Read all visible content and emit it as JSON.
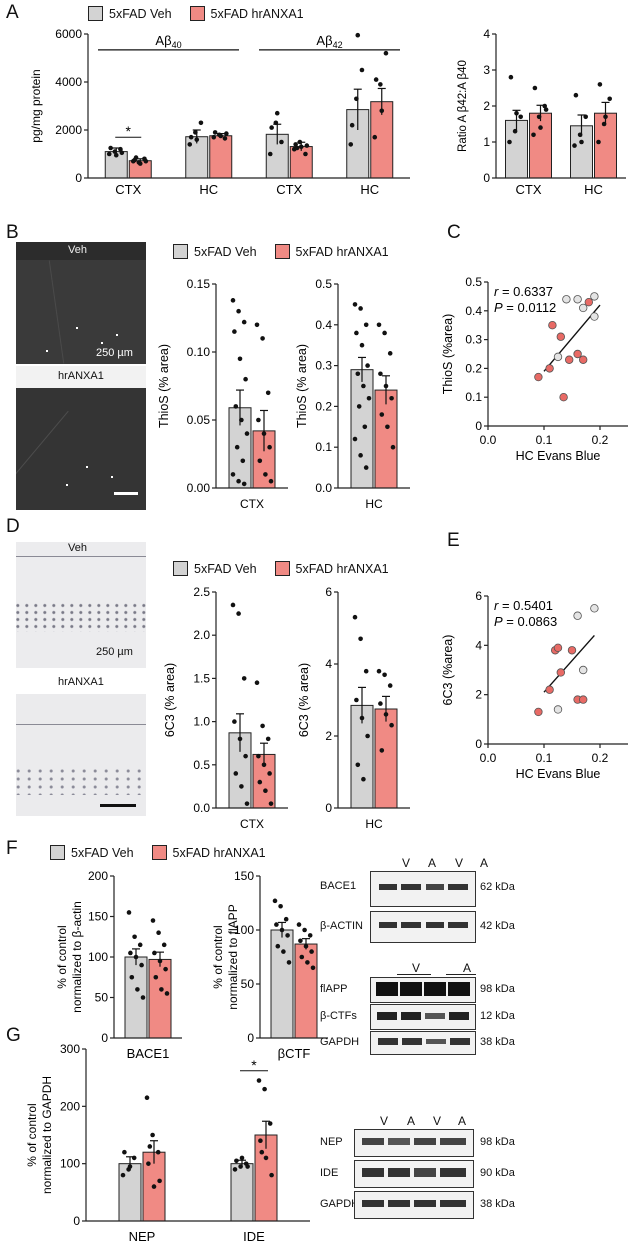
{
  "panels": {
    "A": "A",
    "B": "B",
    "C": "C",
    "D": "D",
    "E": "E",
    "F": "F",
    "G": "G"
  },
  "legend": {
    "veh": "5xFAD Veh",
    "tx": "5xFAD hrANXA1"
  },
  "colors": {
    "veh": "#d3d3d3",
    "tx": "#f08a84",
    "point_tx": "#e86a65",
    "edge": "#222222"
  },
  "micrographs": {
    "B": {
      "top_label": "Veh",
      "bottom_label": "hrANXA1",
      "scale": "250 µm"
    },
    "D": {
      "top_label": "Veh",
      "bottom_label": "hrANXA1",
      "scale": "250 µm"
    }
  },
  "blots": {
    "F1": {
      "lanes": [
        "V",
        "A",
        "V",
        "A"
      ],
      "bands": [
        {
          "name": "BACE1",
          "kda": "62 kDa"
        },
        {
          "name": "β-ACTIN",
          "kda": "42 kDa"
        }
      ]
    },
    "F2": {
      "lanes": [
        "V",
        "A"
      ],
      "bands": [
        {
          "name": "flAPP",
          "kda": "98 kDa"
        },
        {
          "name": "β-CTFs",
          "kda": "12 kDa"
        },
        {
          "name": "GAPDH",
          "kda": "38 kDa"
        }
      ]
    },
    "G": {
      "lanes": [
        "V",
        "A",
        "V",
        "A"
      ],
      "bands": [
        {
          "name": "NEP",
          "kda": "98 kDa"
        },
        {
          "name": "IDE",
          "kda": "90 kDa"
        },
        {
          "name": "GAPDH",
          "kda": "38 kDa"
        }
      ]
    }
  },
  "chart_data": [
    {
      "id": "A1",
      "type": "bar",
      "ylabel": "pg/mg protein",
      "ylim": [
        0,
        6000
      ],
      "yticks": [
        "0",
        "2000",
        "4000",
        "6000"
      ],
      "categories": [
        "CTX",
        "HC",
        "CTX",
        "HC"
      ],
      "group_labels": [
        {
          "text": "Aβ",
          "sub": "40"
        },
        {
          "text": "Aβ",
          "sub": "42"
        }
      ],
      "series": [
        {
          "name": "5xFAD Veh",
          "values": [
            1100,
            1720,
            1820,
            2850
          ],
          "sem": [
            150,
            280,
            420,
            850
          ]
        },
        {
          "name": "5xFAD hrANXA1",
          "values": [
            720,
            1760,
            1310,
            3180
          ],
          "sem": [
            80,
            90,
            180,
            550
          ]
        }
      ],
      "points": [
        [
          [
            1000,
            1100,
            1200,
            1250,
            950,
            1050
          ],
          [
            700,
            650,
            800,
            750,
            600,
            700,
            850
          ]
        ],
        [
          [
            1400,
            1900,
            2300,
            1700,
            1600
          ],
          [
            1700,
            1800,
            1650,
            1900,
            1750,
            1850
          ]
        ],
        [
          [
            1000,
            2300,
            1500,
            2100,
            2700
          ],
          [
            1200,
            1500,
            1000,
            1400,
            1300,
            1350,
            1250
          ]
        ],
        [
          [
            1400,
            3300,
            4500,
            2200
          ],
          [
            1700,
            3900,
            5200,
            4100,
            2800
          ]
        ]
      ],
      "outlier": {
        "group": 3,
        "series": 0,
        "value": 5950
      },
      "significance": [
        {
          "group": 0,
          "label": "*"
        }
      ]
    },
    {
      "id": "A2",
      "type": "bar",
      "ylabel": "Ratio A β42:A β40",
      "ylim": [
        0,
        4
      ],
      "yticks": [
        "0",
        "1",
        "2",
        "3",
        "4"
      ],
      "categories": [
        "CTX",
        "HC"
      ],
      "series": [
        {
          "name": "5xFAD Veh",
          "values": [
            1.6,
            1.45
          ],
          "sem": [
            0.28,
            0.3
          ]
        },
        {
          "name": "5xFAD hrANXA1",
          "values": [
            1.8,
            1.8
          ],
          "sem": [
            0.22,
            0.3
          ]
        }
      ],
      "points": [
        [
          [
            1.0,
            1.3,
            1.7,
            2.8,
            1.8
          ],
          [
            1.2,
            1.7,
            2.0,
            2.5,
            1.4,
            1.9
          ]
        ],
        [
          [
            0.9,
            1.2,
            1.7,
            2.3,
            1.0
          ],
          [
            1.0,
            1.5,
            2.2,
            2.6,
            1.7
          ]
        ]
      ]
    },
    {
      "id": "B1",
      "type": "bar",
      "ylabel": "ThioS (% area)",
      "ylim": [
        0,
        0.15
      ],
      "yticks": [
        "0.00",
        "0.05",
        "0.10",
        "0.15"
      ],
      "categories": [
        "CTX"
      ],
      "series": [
        {
          "name": "5xFAD Veh",
          "values": [
            0.059
          ],
          "sem": [
            0.013
          ]
        },
        {
          "name": "5xFAD hrANXA1",
          "values": [
            0.042
          ],
          "sem": [
            0.015
          ]
        }
      ],
      "points": [
        [
          [
            0.138,
            0.13,
            0.122,
            0.115,
            0.095,
            0.08,
            0.06,
            0.05,
            0.04,
            0.03,
            0.02,
            0.01,
            0.005,
            0.003
          ],
          [
            0.12,
            0.11,
            0.07,
            0.05,
            0.04,
            0.03,
            0.02,
            0.01,
            0.005
          ]
        ]
      ]
    },
    {
      "id": "B2",
      "type": "bar",
      "ylabel": "ThioS (% area)",
      "ylim": [
        0,
        0.5
      ],
      "yticks": [
        "0.0",
        "0.1",
        "0.2",
        "0.3",
        "0.4",
        "0.5"
      ],
      "categories": [
        "HC"
      ],
      "series": [
        {
          "name": "5xFAD Veh",
          "values": [
            0.29
          ],
          "sem": [
            0.03
          ]
        },
        {
          "name": "5xFAD hrANXA1",
          "values": [
            0.24
          ],
          "sem": [
            0.035
          ]
        }
      ],
      "points": [
        [
          [
            0.45,
            0.44,
            0.4,
            0.38,
            0.35,
            0.3,
            0.28,
            0.25,
            0.22,
            0.2,
            0.15,
            0.12,
            0.08,
            0.05
          ],
          [
            0.4,
            0.38,
            0.33,
            0.28,
            0.25,
            0.22,
            0.18,
            0.15,
            0.1
          ]
        ]
      ]
    },
    {
      "id": "C",
      "type": "scatter",
      "xlabel": "HC Evans Blue",
      "ylabel": "ThioS (%area)",
      "xlim": [
        0,
        0.25
      ],
      "ylim": [
        0,
        0.5
      ],
      "xticks": [
        "0.0",
        "0.1",
        "0.2"
      ],
      "yticks": [
        "0",
        "0.1",
        "0.2",
        "0.3",
        "0.4",
        "0.5"
      ],
      "annot_r": "= 0.6337",
      "annot_p": "= 0.0112",
      "series": [
        {
          "name": "5xFAD Veh",
          "points": [
            [
              0.14,
              0.44
            ],
            [
              0.16,
              0.44
            ],
            [
              0.17,
              0.41
            ],
            [
              0.19,
              0.38
            ],
            [
              0.19,
              0.45
            ],
            [
              0.125,
              0.24
            ]
          ]
        },
        {
          "name": "5xFAD hrANXA1",
          "points": [
            [
              0.09,
              0.17
            ],
            [
              0.115,
              0.35
            ],
            [
              0.11,
              0.2
            ],
            [
              0.13,
              0.31
            ],
            [
              0.145,
              0.23
            ],
            [
              0.135,
              0.1
            ],
            [
              0.16,
              0.25
            ],
            [
              0.17,
              0.23
            ],
            [
              0.18,
              0.43
            ]
          ]
        }
      ],
      "fit": {
        "x": [
          0.1,
          0.2
        ],
        "y": [
          0.19,
          0.42
        ]
      }
    },
    {
      "id": "D1",
      "type": "bar",
      "ylabel": "6C3 (% area)",
      "ylim": [
        0,
        2.5
      ],
      "yticks": [
        "0.0",
        "0.5",
        "1.0",
        "1.5",
        "2.0",
        "2.5"
      ],
      "categories": [
        "CTX"
      ],
      "series": [
        {
          "name": "5xFAD Veh",
          "values": [
            0.87
          ],
          "sem": [
            0.22
          ]
        },
        {
          "name": "5xFAD hrANXA1",
          "values": [
            0.62
          ],
          "sem": [
            0.13
          ]
        }
      ],
      "points": [
        [
          [
            2.35,
            2.25,
            1.5,
            1.0,
            0.8,
            0.6,
            0.4,
            0.25,
            0.05
          ],
          [
            1.45,
            0.95,
            0.8,
            0.6,
            0.5,
            0.4,
            0.3,
            0.2,
            0.05
          ]
        ]
      ]
    },
    {
      "id": "D2",
      "type": "bar",
      "ylabel": "6C3 (% area)",
      "ylim": [
        0,
        6
      ],
      "yticks": [
        "0",
        "2",
        "4",
        "6"
      ],
      "categories": [
        "HC"
      ],
      "series": [
        {
          "name": "5xFAD Veh",
          "values": [
            2.85
          ],
          "sem": [
            0.5
          ]
        },
        {
          "name": "5xFAD hrANXA1",
          "values": [
            2.75
          ],
          "sem": [
            0.35
          ]
        }
      ],
      "points": [
        [
          [
            5.3,
            4.7,
            3.8,
            3.0,
            2.5,
            2.0,
            1.2,
            0.8
          ],
          [
            3.8,
            3.7,
            3.4,
            2.9,
            2.6,
            2.3,
            1.6
          ]
        ]
      ]
    },
    {
      "id": "E",
      "type": "scatter",
      "xlabel": "HC Evans Blue",
      "ylabel": "6C3 (%area)",
      "xlim": [
        0,
        0.25
      ],
      "ylim": [
        0,
        6
      ],
      "xticks": [
        "0.0",
        "0.1",
        "0.2"
      ],
      "yticks": [
        "0",
        "2",
        "4",
        "6"
      ],
      "annot_r": "= 0.5401",
      "annot_p": "= 0.0863",
      "series": [
        {
          "name": "5xFAD Veh",
          "points": [
            [
              0.16,
              5.2
            ],
            [
              0.19,
              5.5
            ],
            [
              0.17,
              3.0
            ],
            [
              0.125,
              1.4
            ]
          ]
        },
        {
          "name": "5xFAD hrANXA1",
          "points": [
            [
              0.09,
              1.3
            ],
            [
              0.11,
              2.2
            ],
            [
              0.12,
              3.8
            ],
            [
              0.125,
              3.9
            ],
            [
              0.15,
              3.8
            ],
            [
              0.16,
              1.8
            ],
            [
              0.17,
              1.8
            ],
            [
              0.13,
              2.9
            ]
          ]
        }
      ],
      "fit": {
        "x": [
          0.1,
          0.19
        ],
        "y": [
          2.1,
          4.4
        ]
      }
    },
    {
      "id": "F1",
      "type": "bar",
      "ylabel": "% of control normalized to  β-actin",
      "ylim": [
        0,
        200
      ],
      "yticks": [
        "0",
        "50",
        "100",
        "150",
        "200"
      ],
      "categories": [
        "BACE1"
      ],
      "series": [
        {
          "name": "5xFAD Veh",
          "values": [
            100
          ],
          "sem": [
            10
          ]
        },
        {
          "name": "5xFAD hrANXA1",
          "values": [
            97
          ],
          "sem": [
            9
          ]
        }
      ],
      "points": [
        [
          [
            155,
            125,
            115,
            105,
            100,
            90,
            75,
            60,
            50
          ],
          [
            145,
            130,
            115,
            105,
            95,
            85,
            75,
            60,
            55
          ]
        ]
      ]
    },
    {
      "id": "F2",
      "type": "bar",
      "ylabel": "% of control normalized to flAPP",
      "ylim": [
        0,
        150
      ],
      "yticks": [
        "0",
        "50",
        "100",
        "150"
      ],
      "categories": [
        "βCTF"
      ],
      "series": [
        {
          "name": "5xFAD Veh",
          "values": [
            100
          ],
          "sem": [
            7
          ]
        },
        {
          "name": "5xFAD hrANXA1",
          "values": [
            87
          ],
          "sem": [
            5
          ]
        }
      ],
      "points": [
        [
          [
            127,
            122,
            110,
            105,
            100,
            95,
            85,
            80,
            70
          ],
          [
            105,
            100,
            95,
            90,
            85,
            80,
            75,
            70,
            65
          ]
        ]
      ]
    },
    {
      "id": "G",
      "type": "bar",
      "ylabel": "% of control normalized to GAPDH",
      "ylim": [
        0,
        300
      ],
      "yticks": [
        "0",
        "100",
        "200",
        "300"
      ],
      "categories": [
        "NEP",
        "IDE"
      ],
      "series": [
        {
          "name": "5xFAD Veh",
          "values": [
            100,
            100
          ],
          "sem": [
            12,
            6
          ]
        },
        {
          "name": "5xFAD hrANXA1",
          "values": [
            120,
            150
          ],
          "sem": [
            20,
            24
          ]
        }
      ],
      "points": [
        [
          [
            80,
            90,
            110,
            120,
            95
          ],
          [
            215,
            150,
            120,
            100,
            60,
            70,
            130
          ]
        ],
        [
          [
            90,
            95,
            100,
            105,
            110,
            95
          ],
          [
            245,
            230,
            170,
            140,
            110,
            80,
            120
          ]
        ]
      ],
      "significance": [
        {
          "group": 1,
          "label": "*"
        }
      ]
    }
  ]
}
